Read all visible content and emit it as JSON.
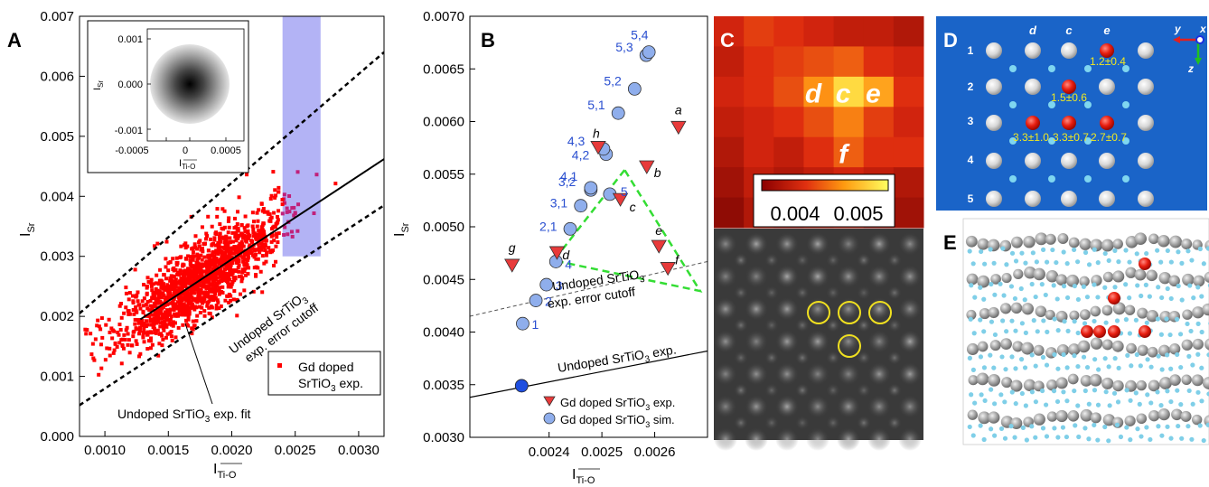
{
  "panels": {
    "A": "A",
    "B": "B",
    "C": "C",
    "D": "D",
    "E": "E"
  },
  "chart_data": [
    {
      "panel": "A",
      "type": "scatter",
      "title": "",
      "xlabel_main": "I",
      "xlabel_sub": "Ti-O",
      "ylabel_main": "I",
      "ylabel_sub": "Sr",
      "xlim": [
        0.0008,
        0.0032
      ],
      "ylim": [
        0.0,
        0.007
      ],
      "xticks": [
        0.001,
        0.0015,
        0.002,
        0.0025,
        0.003
      ],
      "xtick_labels": [
        "0.0010",
        "0.0015",
        "0.0020",
        "0.0025",
        "0.0030"
      ],
      "yticks": [
        0.0,
        0.001,
        0.002,
        0.003,
        0.004,
        0.005,
        0.006,
        0.007
      ],
      "ytick_labels": [
        "0.000",
        "0.001",
        "0.002",
        "0.003",
        "0.004",
        "0.005",
        "0.006",
        "0.007"
      ],
      "highlight_band": {
        "x": [
          0.0024,
          0.0027
        ],
        "y": [
          0.003,
          0.007
        ],
        "color": "#b3b3f5"
      },
      "fit_line": {
        "name": "Undoped SrTiO3 exp. fit",
        "x": [
          0.00128,
          0.0032
        ],
        "y": [
          0.00195,
          0.00462
        ]
      },
      "cutoff_upper": {
        "x": [
          0.0008,
          0.0032
        ],
        "y": [
          0.00205,
          0.0064
        ]
      },
      "cutoff_lower": {
        "x": [
          0.0008,
          0.0032
        ],
        "y": [
          0.00052,
          0.00385
        ]
      },
      "series": [
        {
          "name": "Gd doped SrTiO3 exp.",
          "color": "#ff0000",
          "n_points": 1500,
          "slope": 1.39,
          "intercept": 0.000177,
          "x_center": 0.00175,
          "x_spread": 0.00045,
          "y_noise": 0.00036
        }
      ],
      "legend": {
        "position": "bottom-right",
        "line1": "Gd doped",
        "line2": "SrTiO",
        "line2_sub": "3",
        "line2_end": " exp."
      },
      "annotations": {
        "cutoff_l1_pre": "Undoped SrTiO",
        "cutoff_l1_sub": "3",
        "cutoff_l2": "exp. error cutoff",
        "fit_pre": "Undoped SrTiO",
        "fit_sub": "3",
        "fit_post": " exp. fit"
      },
      "inset": {
        "xlim": [
          -0.001,
          0.001
        ],
        "ylim": [
          -0.0013,
          0.0013
        ],
        "xtick_labels": [
          "-0.0005",
          "0",
          "0.0005"
        ],
        "ytick_labels": [
          "0.001",
          "0.000",
          "-0.001"
        ],
        "xlabel_main": "I",
        "xlabel_sub": "Ti-O",
        "ylabel_main": "I",
        "ylabel_sub": "Sr"
      }
    },
    {
      "panel": "B",
      "type": "scatter",
      "title": "",
      "xlabel_main": "I",
      "xlabel_sub": "Ti-O",
      "ylabel_main": "I",
      "ylabel_sub": "Sr",
      "xlim": [
        0.00225,
        0.0027
      ],
      "ylim": [
        0.003,
        0.007
      ],
      "xticks": [
        0.0024,
        0.0025,
        0.0026
      ],
      "xtick_labels": [
        "0.0024",
        "0.0025",
        "0.0026"
      ],
      "yticks": [
        0.003,
        0.0035,
        0.004,
        0.0045,
        0.005,
        0.0055,
        0.006,
        0.0065,
        0.007
      ],
      "ytick_labels": [
        "0.0030",
        "0.0035",
        "0.0040",
        "0.0045",
        "0.0050",
        "0.0055",
        "0.0060",
        "0.0065",
        "0.0070"
      ],
      "experiment": {
        "name": "Gd doped SrTiO3 exp.",
        "color": "#e83a3a",
        "points": [
          {
            "label": "a",
            "x": 0.002645,
            "y": 0.00595
          },
          {
            "label": "b",
            "x": 0.002585,
            "y": 0.005575
          },
          {
            "label": "c",
            "x": 0.002535,
            "y": 0.005265
          },
          {
            "label": "d",
            "x": 0.002415,
            "y": 0.00476
          },
          {
            "label": "e",
            "x": 0.002608,
            "y": 0.00482
          },
          {
            "label": "f",
            "x": 0.002625,
            "y": 0.00461
          },
          {
            "label": "g",
            "x": 0.00233,
            "y": 0.00464
          },
          {
            "label": "h",
            "x": 0.002493,
            "y": 0.00576
          }
        ]
      },
      "simulation": {
        "name": "Gd doped SrTiO3 sim.",
        "color": "#8faeec",
        "points": [
          {
            "label": "1",
            "x": 0.00235,
            "y": 0.00408
          },
          {
            "label": "2",
            "x": 0.002375,
            "y": 0.0043
          },
          {
            "label": "3",
            "x": 0.002395,
            "y": 0.00445
          },
          {
            "label": "4",
            "x": 0.002413,
            "y": 0.00467
          },
          {
            "label": "5",
            "x": 0.002515,
            "y": 0.00531
          },
          {
            "label": "2,1",
            "x": 0.00244,
            "y": 0.00498
          },
          {
            "label": "3,1",
            "x": 0.00246,
            "y": 0.0052
          },
          {
            "label": "3,2",
            "x": 0.002479,
            "y": 0.00535
          },
          {
            "label": "4,1",
            "x": 0.002479,
            "y": 0.00537
          },
          {
            "label": "4,2",
            "x": 0.002508,
            "y": 0.00569
          },
          {
            "label": "4,3",
            "x": 0.002503,
            "y": 0.00574
          },
          {
            "label": "5,1",
            "x": 0.002531,
            "y": 0.00608
          },
          {
            "label": "5,2",
            "x": 0.002562,
            "y": 0.00631
          },
          {
            "label": "5,3",
            "x": 0.002584,
            "y": 0.00663
          },
          {
            "label": "5,4",
            "x": 0.002589,
            "y": 0.00666
          }
        ],
        "undoped": {
          "x": 0.002348,
          "y": 0.00349,
          "color": "#1f4fe0"
        }
      },
      "undoped_line": {
        "x": [
          0.00225,
          0.0027
        ],
        "y": [
          0.00338,
          0.00382
        ]
      },
      "cutoff_line": {
        "x": [
          0.00225,
          0.0027
        ],
        "y": [
          0.00415,
          0.00467
        ]
      },
      "triangle": {
        "x": [
          0.002543,
          0.002409,
          0.002686
        ],
        "y": [
          0.00554,
          0.00468,
          0.00439
        ],
        "color": "#33dd33"
      },
      "annotations": {
        "cutoff_l1_pre": "Undoped SrTiO",
        "cutoff_l1_sub": "3",
        "cutoff_l2": "exp. error cutoff",
        "undoped_pre": "Undoped SrTiO",
        "undoped_sub": "3",
        "undoped_post": " exp."
      },
      "legend": {
        "position": "bottom-right",
        "exp_pre": "Gd doped SrTiO",
        "exp_sub": "3",
        "exp_post": " exp.",
        "sim_pre": "Gd doped SrTiO",
        "sim_sub": "3",
        "sim_post": " sim."
      }
    },
    {
      "panel": "C",
      "type": "heatmap",
      "rows": 7,
      "cols": 7,
      "values": [
        [
          0.0041,
          0.0043,
          0.0042,
          0.0041,
          0.004,
          0.004,
          0.0039
        ],
        [
          0.004,
          0.0042,
          0.0043,
          0.0044,
          0.0045,
          0.0042,
          0.0041
        ],
        [
          0.0041,
          0.0042,
          0.0044,
          0.0048,
          0.0052,
          0.0049,
          0.0042
        ],
        [
          0.004,
          0.0041,
          0.0042,
          0.0044,
          0.0047,
          0.0043,
          0.0041
        ],
        [
          0.0039,
          0.0041,
          0.004,
          0.0042,
          0.0045,
          0.0042,
          0.0042
        ],
        [
          0.0038,
          0.004,
          0.0039,
          0.004,
          0.0041,
          0.004,
          0.0039
        ],
        [
          0.0037,
          0.0039,
          0.0038,
          0.0039,
          0.004,
          0.0038,
          0.0038
        ]
      ],
      "cell_labels": [
        {
          "text": "d",
          "row": 2,
          "col": 3
        },
        {
          "text": "c",
          "row": 2,
          "col": 4
        },
        {
          "text": "e",
          "row": 2,
          "col": 5
        },
        {
          "text": "f",
          "row": 4,
          "col": 4
        }
      ],
      "colorbar": {
        "range": [
          0.0035,
          0.0054
        ],
        "tick_labels": [
          "0.004",
          "0.005"
        ]
      }
    }
  ],
  "panel_D": {
    "columns": [
      "d",
      "c",
      "e"
    ],
    "rows": [
      "1",
      "2",
      "3",
      "4",
      "5"
    ],
    "values": [
      "1.2±0.4",
      "1.5±0.6",
      "3.3±1.0",
      "3.3±0.7",
      "2.7±0.7"
    ],
    "axes": {
      "y": "y",
      "x": "x",
      "z": "z"
    },
    "background": "#1a64c8"
  }
}
